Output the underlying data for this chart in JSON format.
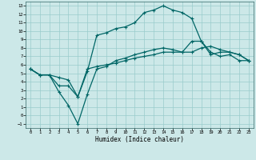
{
  "xlabel": "Humidex (Indice chaleur)",
  "background_color": "#cce8e8",
  "grid_color": "#99cccc",
  "line_color": "#006666",
  "xlim": [
    -0.5,
    23.5
  ],
  "ylim": [
    -1.5,
    13.5
  ],
  "xticks": [
    0,
    1,
    2,
    3,
    4,
    5,
    6,
    7,
    8,
    9,
    10,
    11,
    12,
    13,
    14,
    15,
    16,
    17,
    18,
    19,
    20,
    21,
    22,
    23
  ],
  "yticks": [
    -1,
    0,
    1,
    2,
    3,
    4,
    5,
    6,
    7,
    8,
    9,
    10,
    11,
    12,
    13
  ],
  "line1_x": [
    0,
    1,
    2,
    3,
    4,
    5,
    6,
    7,
    8,
    9,
    10,
    11,
    12,
    13,
    14,
    15,
    16,
    17,
    18,
    19,
    20,
    21,
    22,
    23
  ],
  "line1_y": [
    5.5,
    4.8,
    4.8,
    4.5,
    4.2,
    2.2,
    5.2,
    9.5,
    9.8,
    10.3,
    10.5,
    11.0,
    12.2,
    12.5,
    13.0,
    12.5,
    12.2,
    11.5,
    8.8,
    7.5,
    7.0,
    7.2,
    6.5,
    6.5
  ],
  "line2_x": [
    0,
    1,
    2,
    3,
    4,
    5,
    6,
    7,
    8,
    9,
    10,
    11,
    12,
    13,
    14,
    15,
    16,
    17,
    18,
    19,
    20,
    21,
    22,
    23
  ],
  "line2_y": [
    5.5,
    4.8,
    4.8,
    2.8,
    1.2,
    -1.0,
    2.5,
    5.5,
    5.8,
    6.5,
    6.8,
    7.2,
    7.5,
    7.8,
    8.0,
    7.8,
    7.5,
    8.8,
    8.8,
    7.2,
    7.5,
    7.5,
    7.2,
    6.5
  ],
  "line3_x": [
    0,
    1,
    2,
    3,
    4,
    5,
    6,
    7,
    8,
    9,
    10,
    11,
    12,
    13,
    14,
    15,
    16,
    17,
    18,
    19,
    20,
    21,
    22,
    23
  ],
  "line3_y": [
    5.5,
    4.8,
    4.8,
    3.5,
    3.5,
    2.2,
    5.5,
    5.8,
    6.0,
    6.2,
    6.5,
    6.8,
    7.0,
    7.2,
    7.5,
    7.5,
    7.5,
    7.5,
    8.0,
    8.2,
    7.8,
    7.5,
    7.2,
    6.5
  ]
}
